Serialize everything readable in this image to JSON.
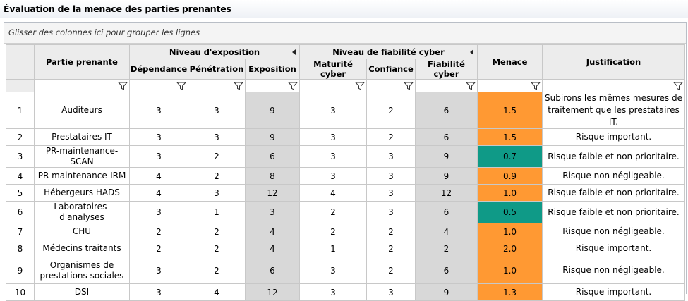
{
  "window": {
    "title": "Évaluation de la menace des parties prenantes"
  },
  "group_area": {
    "placeholder": "Glisser des colonnes ici pour grouper les lignes"
  },
  "headers": {
    "partie": "Partie prenante",
    "exposition_group": "Niveau d'exposition",
    "fiabilite_group": "Niveau de fiabilité cyber",
    "dependance": "Dépendance",
    "penetration": "Pénétration",
    "exposition": "Exposition",
    "maturite": "Maturité cyber",
    "confiance": "Confiance",
    "fiabilite": "Fiabilité cyber",
    "menace": "Menace",
    "justification": "Justification"
  },
  "colors": {
    "orange": "#ff9933",
    "teal": "#0f9a87",
    "grey": "#d8d8d8"
  },
  "rows": [
    {
      "n": "1",
      "partie": "Auditeurs",
      "dep": "3",
      "pen": "3",
      "exp": "9",
      "mat": "3",
      "conf": "2",
      "fiab": "6",
      "menace": "1.5",
      "level": "orange",
      "just": "Subirons les mêmes mesures de traitement que les prestataires IT."
    },
    {
      "n": "2",
      "partie": "Prestataires IT",
      "dep": "3",
      "pen": "3",
      "exp": "9",
      "mat": "3",
      "conf": "2",
      "fiab": "6",
      "menace": "1.5",
      "level": "orange",
      "just": "Risque important."
    },
    {
      "n": "3",
      "partie": "PR-maintenance-SCAN",
      "dep": "3",
      "pen": "2",
      "exp": "6",
      "mat": "3",
      "conf": "3",
      "fiab": "9",
      "menace": "0.7",
      "level": "teal",
      "just": "Risque faible et non prioritaire."
    },
    {
      "n": "4",
      "partie": "PR-maintenance-IRM",
      "dep": "4",
      "pen": "2",
      "exp": "8",
      "mat": "3",
      "conf": "3",
      "fiab": "9",
      "menace": "0.9",
      "level": "orange",
      "just": "Risque non négligeable."
    },
    {
      "n": "5",
      "partie": "Hébergeurs HADS",
      "dep": "4",
      "pen": "3",
      "exp": "12",
      "mat": "4",
      "conf": "3",
      "fiab": "12",
      "menace": "1.0",
      "level": "orange",
      "just": "Risque faible et non prioritaire."
    },
    {
      "n": "6",
      "partie": "Laboratoires-d'analyses",
      "dep": "3",
      "pen": "1",
      "exp": "3",
      "mat": "2",
      "conf": "3",
      "fiab": "6",
      "menace": "0.5",
      "level": "teal",
      "just": "Risque faible et non prioritaire."
    },
    {
      "n": "7",
      "partie": "CHU",
      "dep": "2",
      "pen": "2",
      "exp": "4",
      "mat": "2",
      "conf": "2",
      "fiab": "4",
      "menace": "1.0",
      "level": "orange",
      "just": "Risque non négligeable."
    },
    {
      "n": "8",
      "partie": "Médecins traitants",
      "dep": "2",
      "pen": "2",
      "exp": "4",
      "mat": "1",
      "conf": "2",
      "fiab": "2",
      "menace": "2.0",
      "level": "orange",
      "just": "Risque important."
    },
    {
      "n": "9",
      "partie": "Organismes de prestations sociales",
      "dep": "3",
      "pen": "2",
      "exp": "6",
      "mat": "3",
      "conf": "2",
      "fiab": "6",
      "menace": "1.0",
      "level": "orange",
      "just": "Risque non négligeable."
    },
    {
      "n": "10",
      "partie": "DSI",
      "dep": "3",
      "pen": "4",
      "exp": "12",
      "mat": "3",
      "conf": "3",
      "fiab": "9",
      "menace": "1.3",
      "level": "orange",
      "just": "Risque important."
    }
  ]
}
